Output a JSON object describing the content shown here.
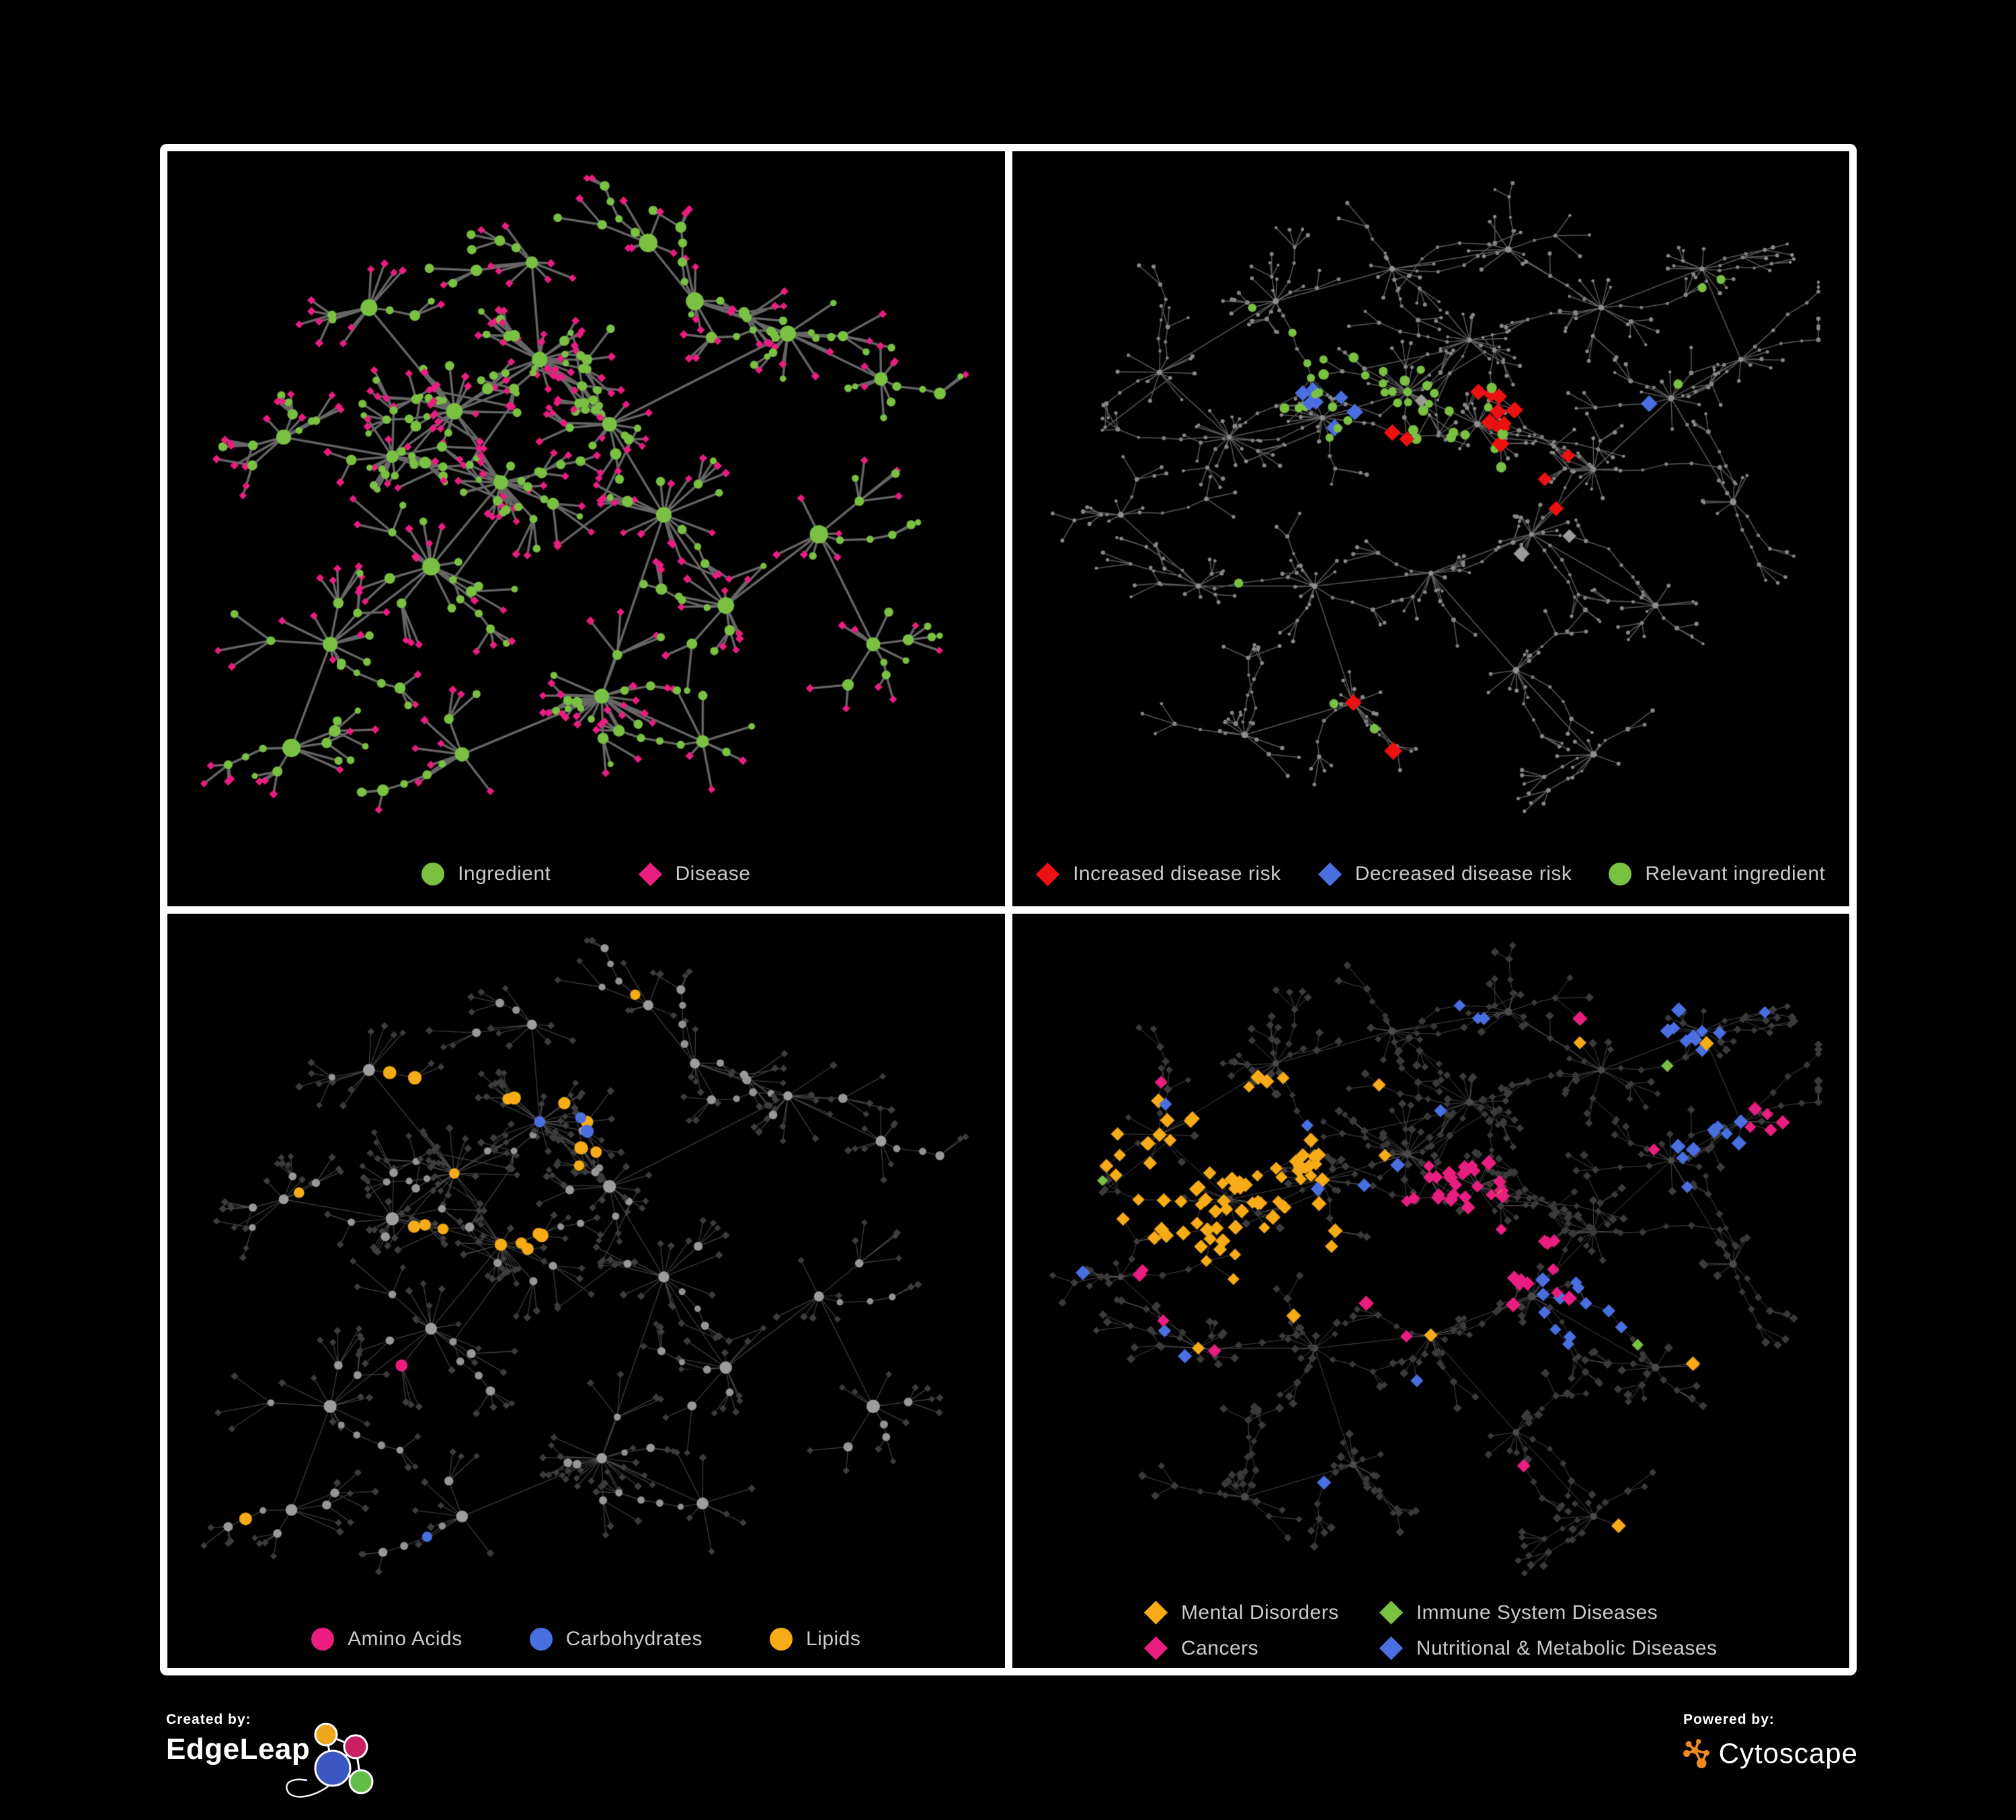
{
  "page": {
    "background": "#000000",
    "frame_color": "#ffffff"
  },
  "figure": {
    "panels": [
      {
        "name": "ingredient-disease-network",
        "legend": [
          {
            "label": "Ingredient",
            "shape": "circle",
            "color": "#7ac142"
          },
          {
            "label": "Disease",
            "shape": "diamond",
            "color": "#e91e80"
          }
        ]
      },
      {
        "name": "disease-risk-network",
        "legend": [
          {
            "label": "Increased disease risk",
            "shape": "diamond",
            "color": "#ee1111"
          },
          {
            "label": "Decreased disease risk",
            "shape": "diamond",
            "color": "#4a6fe1"
          },
          {
            "label": "Relevant ingredient",
            "shape": "circle",
            "color": "#7ac142"
          }
        ]
      },
      {
        "name": "nutrient-class-network",
        "legend": [
          {
            "label": "Amino Acids",
            "shape": "circle",
            "color": "#e91e80"
          },
          {
            "label": "Carbohydrates",
            "shape": "circle",
            "color": "#4a6fe1"
          },
          {
            "label": "Lipids",
            "shape": "circle",
            "color": "#f7ab17"
          }
        ]
      },
      {
        "name": "disease-category-network",
        "legend": [
          {
            "label": "Mental Disorders",
            "shape": "diamond",
            "color": "#f7ab17"
          },
          {
            "label": "Immune System Diseases",
            "shape": "diamond",
            "color": "#7ac142"
          },
          {
            "label": "Cancers",
            "shape": "diamond",
            "color": "#e91e80"
          },
          {
            "label": "Nutritional & Metabolic Diseases",
            "shape": "diamond",
            "color": "#4a6fe1"
          }
        ]
      }
    ]
  },
  "footer": {
    "created_by": "Created by:",
    "edgeleap": "EdgeLeap",
    "powered_by": "Powered by:",
    "cytoscape": "Cytoscape",
    "edgeleap_colors": {
      "yellow": "#efa51c",
      "pink": "#cb1e63",
      "blue": "#3b57c4",
      "green": "#63bc46"
    },
    "cytoscape_orange": "#ef8c1f"
  },
  "chart_data": {
    "type": "node-link-network",
    "background": "#000000",
    "topologies": {
      "A": {
        "seed": 101,
        "spread": 0.075,
        "subP": 0.22,
        "branches": 1,
        "chain": 3,
        "cross": 220,
        "hubs": [
          [
            0.44,
            0.28,
            26
          ],
          [
            0.33,
            0.36,
            24
          ],
          [
            0.39,
            0.47,
            22
          ],
          [
            0.25,
            0.43,
            16
          ],
          [
            0.53,
            0.38,
            14
          ],
          [
            0.6,
            0.52,
            14
          ],
          [
            0.3,
            0.6,
            14
          ],
          [
            0.17,
            0.72,
            10
          ],
          [
            0.52,
            0.8,
            20
          ],
          [
            0.68,
            0.66,
            10
          ],
          [
            0.76,
            0.24,
            12
          ],
          [
            0.88,
            0.31,
            9
          ],
          [
            0.64,
            0.19,
            9
          ],
          [
            0.22,
            0.2,
            9
          ],
          [
            0.11,
            0.4,
            7
          ],
          [
            0.8,
            0.55,
            7
          ],
          [
            0.43,
            0.13,
            8
          ],
          [
            0.58,
            0.1,
            6
          ],
          [
            0.87,
            0.72,
            6
          ],
          [
            0.34,
            0.89,
            7
          ],
          [
            0.65,
            0.87,
            6
          ],
          [
            0.12,
            0.88,
            5
          ]
        ]
      },
      "B": {
        "seed": 202,
        "spread": 0.05,
        "subP": 0.15,
        "branches": 3,
        "chain": 4,
        "cross": 110,
        "hubs": [
          [
            0.47,
            0.33,
            22
          ],
          [
            0.56,
            0.38,
            18
          ],
          [
            0.36,
            0.37,
            16
          ],
          [
            0.24,
            0.4,
            14
          ],
          [
            0.15,
            0.3,
            10
          ],
          [
            0.3,
            0.19,
            11
          ],
          [
            0.45,
            0.14,
            10
          ],
          [
            0.6,
            0.11,
            8
          ],
          [
            0.72,
            0.2,
            10
          ],
          [
            0.85,
            0.14,
            8
          ],
          [
            0.9,
            0.28,
            8
          ],
          [
            0.81,
            0.34,
            9
          ],
          [
            0.71,
            0.45,
            11
          ],
          [
            0.63,
            0.55,
            12
          ],
          [
            0.5,
            0.61,
            10
          ],
          [
            0.35,
            0.63,
            9
          ],
          [
            0.2,
            0.63,
            8
          ],
          [
            0.4,
            0.81,
            12
          ],
          [
            0.61,
            0.76,
            8
          ],
          [
            0.79,
            0.66,
            9
          ],
          [
            0.89,
            0.5,
            7
          ],
          [
            0.26,
            0.86,
            7
          ],
          [
            0.71,
            0.89,
            7
          ],
          [
            0.1,
            0.52,
            6
          ],
          [
            0.55,
            0.25,
            14
          ]
        ]
      }
    },
    "panels": [
      {
        "topology": "A",
        "seed": 11,
        "edge": {
          "c": "#6f6f6f",
          "w": 3.4,
          "a": 0.92
        },
        "base": {
          "hub": {
            "s": "c",
            "c": "#7ac142",
            "r": [
              9,
              14
            ]
          },
          "sub": {
            "s": "c",
            "c": "#7ac142",
            "r": [
              6,
              9
            ]
          },
          "mid": {
            "s": "c",
            "c": "#7ac142",
            "r": [
              5,
              7
            ]
          },
          "leaf": {
            "s": "d",
            "c": "#e91e80",
            "r": [
              5.5,
              6.5
            ]
          }
        },
        "leafAlt": {
          "p": 0.24,
          "s": "c",
          "c": "#7ac142",
          "r": [
            4.5,
            7
          ]
        },
        "regions": []
      },
      {
        "topology": "B",
        "seed": 22,
        "edge": {
          "c": "#5f5f5f",
          "w": 1.5,
          "a": 0.95
        },
        "base": {
          "hub": {
            "s": "c",
            "c": "#8f8f8f",
            "r": [
              3.5,
              5
            ]
          },
          "sub": {
            "s": "c",
            "c": "#868686",
            "r": [
              2.6,
              3.6
            ]
          },
          "mid": {
            "s": "c",
            "c": "#808080",
            "r": [
              2.2,
              3
            ]
          },
          "leaf": {
            "s": "c",
            "c": "#888888",
            "r": [
              2.2,
              3.2
            ]
          }
        },
        "regions": [
          {
            "s": "c",
            "c": "#7ac142",
            "size": 7,
            "x": 0.4,
            "y": 0.34,
            "r": 0.1,
            "p": 0.3
          },
          {
            "s": "c",
            "c": "#7ac142",
            "size": 7,
            "x": 0.55,
            "y": 0.4,
            "r": 0.1,
            "p": 0.26
          },
          {
            "s": "c",
            "c": "#7ac142",
            "size": 7,
            "x": 0.3,
            "y": 0.25,
            "r": 0.07,
            "p": 0.15
          },
          {
            "s": "c",
            "c": "#7ac142",
            "size": 7,
            "p": 0.006
          },
          {
            "s": "d",
            "c": "#ee1111",
            "size": 12,
            "x": 0.53,
            "y": 0.37,
            "r": 0.09,
            "p": 0.3
          },
          {
            "s": "d",
            "c": "#ee1111",
            "size": 12,
            "x": 0.44,
            "y": 0.29,
            "r": 0.06,
            "p": 0.25
          },
          {
            "s": "d",
            "c": "#ee1111",
            "size": 12,
            "x": 0.62,
            "y": 0.46,
            "r": 0.07,
            "p": 0.22
          },
          {
            "s": "d",
            "c": "#ee1111",
            "size": 12,
            "x": 0.36,
            "y": 0.52,
            "r": 0.05,
            "p": 0.18
          },
          {
            "s": "d",
            "c": "#ee1111",
            "size": 12,
            "x": 0.38,
            "y": 0.8,
            "r": 0.05,
            "p": 0.25
          },
          {
            "s": "d",
            "c": "#ee1111",
            "size": 12,
            "p": 0.004
          },
          {
            "s": "d",
            "c": "#4a6fe1",
            "size": 12,
            "x": 0.375,
            "y": 0.345,
            "r": 0.045,
            "p": 0.45
          },
          {
            "s": "d",
            "c": "#4a6fe1",
            "size": 12,
            "x": 0.81,
            "y": 0.345,
            "r": 0.03,
            "p": 0.9
          },
          {
            "s": "d",
            "c": "#9b9b9b",
            "size": 11,
            "x": 0.45,
            "y": 0.4,
            "r": 0.13,
            "p": 0.05
          },
          {
            "s": "d",
            "c": "#9b9b9b",
            "size": 11,
            "x": 0.6,
            "y": 0.55,
            "r": 0.08,
            "p": 0.06
          }
        ]
      },
      {
        "topology": "A",
        "seed": 33,
        "edge": {
          "c": "#aeaeae",
          "w": 1.1,
          "a": 0.42
        },
        "base": {
          "hub": {
            "s": "c",
            "c": "#9d9d9d",
            "r": [
              6.5,
              10
            ]
          },
          "sub": {
            "s": "c",
            "c": "#989898",
            "r": [
              5,
              7
            ]
          },
          "mid": {
            "s": "c",
            "c": "#929292",
            "r": [
              4.5,
              6
            ]
          },
          "leaf": {
            "s": "d",
            "c": "#3d3d3d",
            "r": [
              4.8,
              6
            ]
          }
        },
        "regions": [
          {
            "only": "c",
            "s": "c",
            "c": "#f7ab17",
            "size": 9,
            "x": 0.42,
            "y": 0.3,
            "r": 0.1,
            "p": 0.6
          },
          {
            "only": "c",
            "s": "c",
            "c": "#f7ab17",
            "size": 9,
            "x": 0.35,
            "y": 0.45,
            "r": 0.1,
            "p": 0.5
          },
          {
            "only": "c",
            "s": "c",
            "c": "#f7ab17",
            "size": 9,
            "x": 0.52,
            "y": 0.62,
            "r": 0.07,
            "p": 0.55
          },
          {
            "only": "c",
            "s": "c",
            "c": "#f7ab17",
            "size": 9,
            "x": 0.3,
            "y": 0.22,
            "r": 0.07,
            "p": 0.35
          },
          {
            "only": "c",
            "s": "c",
            "c": "#f7ab17",
            "size": 9,
            "p": 0.02
          },
          {
            "only": "c",
            "s": "c",
            "c": "#4a6fe1",
            "size": 8.5,
            "x": 0.46,
            "y": 0.28,
            "r": 0.055,
            "p": 0.4
          },
          {
            "only": "c",
            "s": "c",
            "c": "#4a6fe1",
            "size": 8.5,
            "p": 0.01
          },
          {
            "only": "c",
            "s": "c",
            "c": "#e91e80",
            "size": 8.5,
            "x": 0.14,
            "y": 0.52,
            "r": 0.06,
            "p": 0.3
          },
          {
            "only": "c",
            "s": "c",
            "c": "#e91e80",
            "size": 8.5,
            "x": 0.75,
            "y": 0.56,
            "r": 0.08,
            "p": 0.3
          },
          {
            "only": "c",
            "s": "c",
            "c": "#e91e80",
            "size": 8.5,
            "x": 0.88,
            "y": 0.1,
            "r": 0.06,
            "p": 0.4
          },
          {
            "only": "c",
            "s": "c",
            "c": "#e91e80",
            "size": 8.5,
            "p": 0.04
          }
        ]
      },
      {
        "topology": "B",
        "seed": 44,
        "edge": {
          "c": "#909090",
          "w": 1.0,
          "a": 0.5
        },
        "base": {
          "hub": {
            "s": "c",
            "c": "#4a4a4a",
            "r": [
              4.5,
              6
            ]
          },
          "sub": {
            "s": "d",
            "c": "#3b3b3b",
            "r": [
              5,
              6.5
            ]
          },
          "mid": {
            "s": "d",
            "c": "#393939",
            "r": [
              4.5,
              6
            ]
          },
          "leaf": {
            "s": "d",
            "c": "#3b3b3b",
            "r": [
              4.8,
              6.8
            ]
          }
        },
        "regions": [
          {
            "s": "d",
            "c": "#f7ab17",
            "size": 10,
            "x": 0.24,
            "y": 0.38,
            "r": 0.13,
            "p": 0.8
          },
          {
            "s": "d",
            "c": "#f7ab17",
            "size": 10,
            "x": 0.13,
            "y": 0.3,
            "r": 0.08,
            "p": 0.55
          },
          {
            "s": "d",
            "c": "#f7ab17",
            "size": 10,
            "x": 0.32,
            "y": 0.5,
            "r": 0.08,
            "p": 0.5
          },
          {
            "s": "d",
            "c": "#f7ab17",
            "size": 10,
            "x": 0.3,
            "y": 0.22,
            "r": 0.06,
            "p": 0.3
          },
          {
            "s": "d",
            "c": "#f7ab17",
            "size": 10,
            "p": 0.012
          },
          {
            "s": "d",
            "c": "#e91e80",
            "size": 10,
            "x": 0.52,
            "y": 0.44,
            "r": 0.1,
            "p": 0.55
          },
          {
            "s": "d",
            "c": "#e91e80",
            "size": 10,
            "x": 0.62,
            "y": 0.52,
            "r": 0.07,
            "p": 0.4
          },
          {
            "s": "d",
            "c": "#e91e80",
            "size": 10,
            "x": 0.47,
            "y": 0.57,
            "r": 0.06,
            "p": 0.35
          },
          {
            "s": "d",
            "c": "#e91e80",
            "size": 10,
            "x": 0.93,
            "y": 0.27,
            "r": 0.05,
            "p": 0.5
          },
          {
            "s": "d",
            "c": "#e91e80",
            "size": 10,
            "p": 0.008
          },
          {
            "s": "d",
            "c": "#4a6fe1",
            "size": 10,
            "x": 0.68,
            "y": 0.57,
            "r": 0.06,
            "p": 0.8
          },
          {
            "s": "d",
            "c": "#4a6fe1",
            "size": 10,
            "x": 0.88,
            "y": 0.3,
            "r": 0.07,
            "p": 0.55
          },
          {
            "s": "d",
            "c": "#4a6fe1",
            "size": 10,
            "x": 0.82,
            "y": 0.12,
            "r": 0.07,
            "p": 0.45
          },
          {
            "s": "d",
            "c": "#4a6fe1",
            "size": 10,
            "x": 0.3,
            "y": 0.78,
            "r": 0.05,
            "p": 0.3
          },
          {
            "s": "d",
            "c": "#4a6fe1",
            "size": 10,
            "x": 0.56,
            "y": 0.12,
            "r": 0.05,
            "p": 0.3
          },
          {
            "s": "d",
            "c": "#4a6fe1",
            "size": 10,
            "x": 0.2,
            "y": 0.6,
            "r": 0.05,
            "p": 0.25
          },
          {
            "s": "d",
            "c": "#4a6fe1",
            "size": 10,
            "p": 0.02
          },
          {
            "s": "d",
            "c": "#7ac142",
            "size": 9,
            "p": 0.007
          }
        ]
      }
    ]
  }
}
